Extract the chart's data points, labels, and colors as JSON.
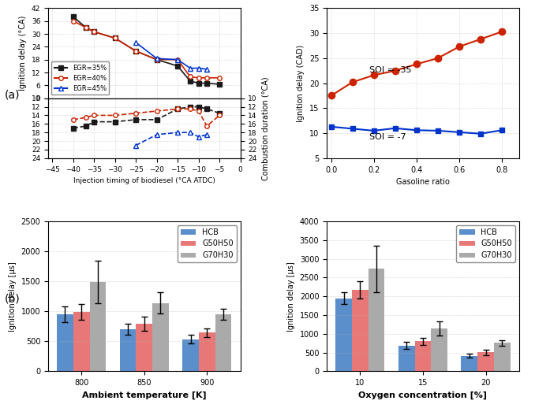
{
  "top_left": {
    "egr35_x": [
      -40,
      -37,
      -35,
      -30,
      -25,
      -20,
      -15,
      -12,
      -10,
      -8,
      -5
    ],
    "egr35_ign": [
      38,
      33,
      31,
      28,
      22,
      18,
      15,
      8,
      7,
      7,
      6.5
    ],
    "egr35_comb": [
      17,
      16.5,
      15.5,
      15.5,
      15,
      15,
      12.5,
      12,
      12,
      12.5,
      13.5
    ],
    "egr40_x": [
      -40,
      -37,
      -35,
      -30,
      -25,
      -20,
      -15,
      -12,
      -10,
      -8,
      -5
    ],
    "egr40_ign": [
      36,
      33,
      31,
      28,
      22,
      18,
      18,
      10,
      9.5,
      9.5,
      9.5
    ],
    "egr40_comb": [
      15,
      14.5,
      14,
      14,
      13.5,
      13,
      12.5,
      12.5,
      13,
      16.5,
      14
    ],
    "egr45_x": [
      -25,
      -20,
      -15,
      -12,
      -10,
      -8
    ],
    "egr45_ign": [
      26,
      18.5,
      18,
      14,
      14,
      13.5
    ],
    "egr45_comb": [
      21,
      18.5,
      18,
      18,
      19,
      18.5
    ],
    "xlabel": "Injection timing of biodiesel (°CA ATDC)",
    "ylabel_left": "Ignition delay (°CA)",
    "ylabel_right": "Combustion duration (°CA)",
    "xlim": [
      -46,
      0
    ],
    "ylim_ign": [
      0,
      42
    ],
    "ylim_comb": [
      10,
      24
    ],
    "xticks": [
      -45,
      -40,
      -35,
      -30,
      -25,
      -20,
      -15,
      -10,
      -5,
      0
    ],
    "yticks_ign": [
      0,
      6,
      12,
      18,
      24,
      30,
      36,
      42
    ],
    "yticks_comb": [
      10,
      12,
      14,
      16,
      18,
      20,
      22,
      24
    ]
  },
  "top_right": {
    "soi35_x": [
      0.0,
      0.1,
      0.2,
      0.3,
      0.4,
      0.5,
      0.6,
      0.7,
      0.8
    ],
    "soi35_y": [
      17.5,
      20.2,
      21.6,
      22.5,
      23.8,
      25.0,
      27.3,
      28.8,
      30.3
    ],
    "soi7_x": [
      0.0,
      0.1,
      0.2,
      0.3,
      0.4,
      0.5,
      0.6,
      0.7,
      0.8
    ],
    "soi7_y": [
      11.3,
      10.9,
      10.5,
      11.0,
      10.6,
      10.5,
      10.2,
      9.9,
      10.6
    ],
    "xlabel": "Gasoline ratio",
    "ylabel": "Ignition delay (CAD)",
    "xlim": [
      -0.02,
      0.88
    ],
    "ylim": [
      5,
      35
    ],
    "yticks": [
      5,
      10,
      15,
      20,
      25,
      30,
      35
    ],
    "xticks": [
      0.0,
      0.2,
      0.4,
      0.6,
      0.8
    ]
  },
  "bot_left": {
    "categories": [
      "800",
      "850",
      "900"
    ],
    "hcb": [
      950,
      700,
      535
    ],
    "g50h50": [
      990,
      795,
      645
    ],
    "g70h30": [
      1490,
      1140,
      950
    ],
    "hcb_err": [
      130,
      90,
      75
    ],
    "g50h50_err": [
      130,
      115,
      75
    ],
    "g70h30_err": [
      350,
      180,
      90
    ],
    "xlabel": "Ambient temperature [K]",
    "ylabel": "Ignition delay [µs]",
    "ylim": [
      0,
      2500
    ],
    "yticks": [
      0,
      500,
      1000,
      1500,
      2000,
      2500
    ]
  },
  "bot_right": {
    "categories": [
      "10",
      "15",
      "20"
    ],
    "hcb": [
      1950,
      690,
      415
    ],
    "g50h50": [
      2170,
      800,
      505
    ],
    "g70h30": [
      2730,
      1140,
      760
    ],
    "hcb_err": [
      150,
      90,
      60
    ],
    "g50h50_err": [
      240,
      90,
      70
    ],
    "g70h30_err": [
      620,
      185,
      75
    ],
    "xlabel": "Oxygen concentration [%]",
    "ylabel": "Ignition delay [µs]",
    "ylim": [
      0,
      4000
    ],
    "yticks": [
      0,
      500,
      1000,
      1500,
      2000,
      2500,
      3000,
      3500,
      4000
    ]
  },
  "colors": {
    "black": "#1a1a1a",
    "red": "#cc2200",
    "blue": "#0033cc",
    "bar_blue": "#5b8fcc",
    "bar_red": "#e87878",
    "bar_gray": "#aaaaaa"
  }
}
